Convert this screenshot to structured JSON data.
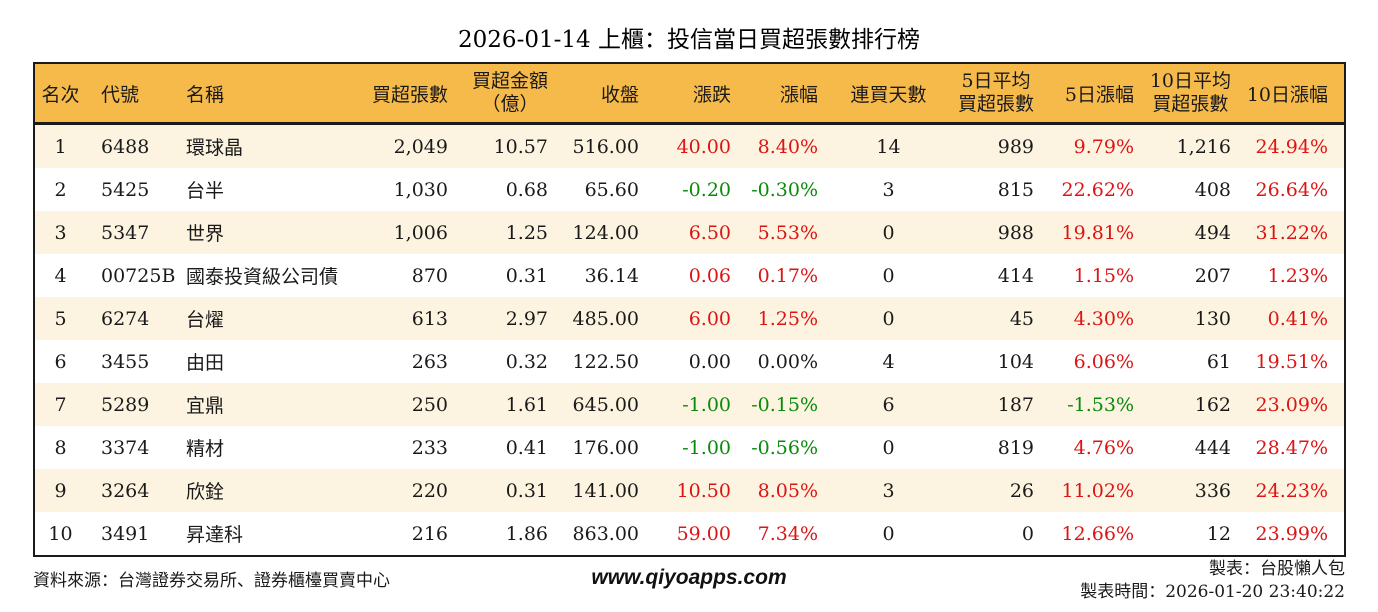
{
  "title": "2026-01-14 上櫃：投信當日買超張數排行榜",
  "colors": {
    "up": "#DC1414",
    "down": "#0A8A0A",
    "flat": "#1A1A1A",
    "header_bg": "#F6BA4B",
    "row_alt_bg": "#FCF4E0",
    "border": "#1A1A1A"
  },
  "chart_data": {
    "type": "table",
    "title": "2026-01-14 上櫃：投信當日買超張數排行榜",
    "columns": [
      {
        "key": "rank",
        "label": "名次"
      },
      {
        "key": "code",
        "label": "代號"
      },
      {
        "key": "name",
        "label": "名稱"
      },
      {
        "key": "net_buy_volume",
        "label": "買超張數"
      },
      {
        "key": "net_buy_amount",
        "label": "買超金額",
        "label2": "（億）"
      },
      {
        "key": "close",
        "label": "收盤"
      },
      {
        "key": "change",
        "label": "漲跌"
      },
      {
        "key": "change_pct",
        "label": "漲幅"
      },
      {
        "key": "buy_streak_days",
        "label": "連買天數"
      },
      {
        "key": "avg5_net_buy",
        "label": "5日平均",
        "label2": "買超張數"
      },
      {
        "key": "pct5",
        "label": "5日漲幅"
      },
      {
        "key": "avg10_net_buy",
        "label": "10日平均",
        "label2": "買超張數"
      },
      {
        "key": "pct10",
        "label": "10日漲幅"
      }
    ],
    "rows": [
      {
        "rank": "1",
        "code": "6488",
        "name": "環球晶",
        "net_buy_volume": "2,049",
        "net_buy_amount": "10.57",
        "close": "516.00",
        "change": {
          "text": "40.00",
          "tone": "up"
        },
        "change_pct": {
          "text": "8.40%",
          "tone": "up"
        },
        "buy_streak_days": "14",
        "avg5_net_buy": "989",
        "pct5": {
          "text": "9.79%",
          "tone": "up"
        },
        "avg10_net_buy": "1,216",
        "pct10": {
          "text": "24.94%",
          "tone": "up"
        }
      },
      {
        "rank": "2",
        "code": "5425",
        "name": "台半",
        "net_buy_volume": "1,030",
        "net_buy_amount": "0.68",
        "close": "65.60",
        "change": {
          "text": "-0.20",
          "tone": "down"
        },
        "change_pct": {
          "text": "-0.30%",
          "tone": "down"
        },
        "buy_streak_days": "3",
        "avg5_net_buy": "815",
        "pct5": {
          "text": "22.62%",
          "tone": "up"
        },
        "avg10_net_buy": "408",
        "pct10": {
          "text": "26.64%",
          "tone": "up"
        }
      },
      {
        "rank": "3",
        "code": "5347",
        "name": "世界",
        "net_buy_volume": "1,006",
        "net_buy_amount": "1.25",
        "close": "124.00",
        "change": {
          "text": "6.50",
          "tone": "up"
        },
        "change_pct": {
          "text": "5.53%",
          "tone": "up"
        },
        "buy_streak_days": "0",
        "avg5_net_buy": "988",
        "pct5": {
          "text": "19.81%",
          "tone": "up"
        },
        "avg10_net_buy": "494",
        "pct10": {
          "text": "31.22%",
          "tone": "up"
        }
      },
      {
        "rank": "4",
        "code": "00725B",
        "name": "國泰投資級公司債",
        "net_buy_volume": "870",
        "net_buy_amount": "0.31",
        "close": "36.14",
        "change": {
          "text": "0.06",
          "tone": "up"
        },
        "change_pct": {
          "text": "0.17%",
          "tone": "up"
        },
        "buy_streak_days": "0",
        "avg5_net_buy": "414",
        "pct5": {
          "text": "1.15%",
          "tone": "up"
        },
        "avg10_net_buy": "207",
        "pct10": {
          "text": "1.23%",
          "tone": "up"
        }
      },
      {
        "rank": "5",
        "code": "6274",
        "name": "台燿",
        "net_buy_volume": "613",
        "net_buy_amount": "2.97",
        "close": "485.00",
        "change": {
          "text": "6.00",
          "tone": "up"
        },
        "change_pct": {
          "text": "1.25%",
          "tone": "up"
        },
        "buy_streak_days": "0",
        "avg5_net_buy": "45",
        "pct5": {
          "text": "4.30%",
          "tone": "up"
        },
        "avg10_net_buy": "130",
        "pct10": {
          "text": "0.41%",
          "tone": "up"
        }
      },
      {
        "rank": "6",
        "code": "3455",
        "name": "由田",
        "net_buy_volume": "263",
        "net_buy_amount": "0.32",
        "close": "122.50",
        "change": {
          "text": "0.00",
          "tone": "flat"
        },
        "change_pct": {
          "text": "0.00%",
          "tone": "flat"
        },
        "buy_streak_days": "4",
        "avg5_net_buy": "104",
        "pct5": {
          "text": "6.06%",
          "tone": "up"
        },
        "avg10_net_buy": "61",
        "pct10": {
          "text": "19.51%",
          "tone": "up"
        }
      },
      {
        "rank": "7",
        "code": "5289",
        "name": "宜鼎",
        "net_buy_volume": "250",
        "net_buy_amount": "1.61",
        "close": "645.00",
        "change": {
          "text": "-1.00",
          "tone": "down"
        },
        "change_pct": {
          "text": "-0.15%",
          "tone": "down"
        },
        "buy_streak_days": "6",
        "avg5_net_buy": "187",
        "pct5": {
          "text": "-1.53%",
          "tone": "down"
        },
        "avg10_net_buy": "162",
        "pct10": {
          "text": "23.09%",
          "tone": "up"
        }
      },
      {
        "rank": "8",
        "code": "3374",
        "name": "精材",
        "net_buy_volume": "233",
        "net_buy_amount": "0.41",
        "close": "176.00",
        "change": {
          "text": "-1.00",
          "tone": "down"
        },
        "change_pct": {
          "text": "-0.56%",
          "tone": "down"
        },
        "buy_streak_days": "0",
        "avg5_net_buy": "819",
        "pct5": {
          "text": "4.76%",
          "tone": "up"
        },
        "avg10_net_buy": "444",
        "pct10": {
          "text": "28.47%",
          "tone": "up"
        }
      },
      {
        "rank": "9",
        "code": "3264",
        "name": "欣銓",
        "net_buy_volume": "220",
        "net_buy_amount": "0.31",
        "close": "141.00",
        "change": {
          "text": "10.50",
          "tone": "up"
        },
        "change_pct": {
          "text": "8.05%",
          "tone": "up"
        },
        "buy_streak_days": "3",
        "avg5_net_buy": "26",
        "pct5": {
          "text": "11.02%",
          "tone": "up"
        },
        "avg10_net_buy": "336",
        "pct10": {
          "text": "24.23%",
          "tone": "up"
        }
      },
      {
        "rank": "10",
        "code": "3491",
        "name": "昇達科",
        "net_buy_volume": "216",
        "net_buy_amount": "1.86",
        "close": "863.00",
        "change": {
          "text": "59.00",
          "tone": "up"
        },
        "change_pct": {
          "text": "7.34%",
          "tone": "up"
        },
        "buy_streak_days": "0",
        "avg5_net_buy": "0",
        "pct5": {
          "text": "12.66%",
          "tone": "up"
        },
        "avg10_net_buy": "12",
        "pct10": {
          "text": "23.99%",
          "tone": "up"
        }
      }
    ]
  },
  "footer": {
    "source": "資料來源：台灣證券交易所、證券櫃檯買賣中心",
    "website": "www.qiyoapps.com",
    "author": "製表：台股懶人包",
    "generated": "製表時間：2026-01-20 23:40:22"
  }
}
